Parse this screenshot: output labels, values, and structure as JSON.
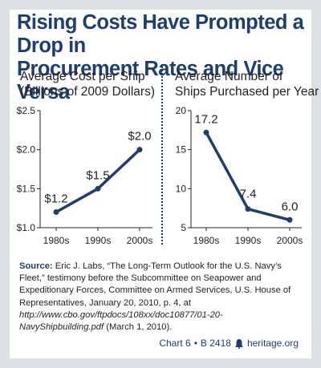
{
  "title": {
    "line1": "Rising Costs Have Prompted a Drop in",
    "line2": "Procurement Rates and Vice Versa"
  },
  "chart_data": [
    {
      "type": "line",
      "title_line1": "Average Cost per Ship",
      "title_line2": "(Billions of 2009 Dollars)",
      "categories": [
        "1980s",
        "1990s",
        "2000s"
      ],
      "values": [
        1.2,
        1.5,
        2.0
      ],
      "data_labels": [
        "$1.2",
        "$1.5",
        "$2.0"
      ],
      "yticks": [
        1.0,
        1.5,
        2.0,
        2.5
      ],
      "ytick_labels": [
        "$1.0",
        "$1.5",
        "$2.0",
        "$2.5"
      ],
      "ylim": [
        1.0,
        2.5
      ],
      "color": "#1c3f73",
      "grid": false
    },
    {
      "type": "line",
      "title_line1": "Average Number of",
      "title_line2": "Ships Purchased per Year",
      "categories": [
        "1980s",
        "1990s",
        "2000s"
      ],
      "values": [
        17.2,
        7.4,
        6.0
      ],
      "data_labels": [
        "17.2",
        "7.4",
        "6.0"
      ],
      "yticks": [
        5,
        10,
        15,
        20
      ],
      "ytick_labels": [
        "5",
        "10",
        "15",
        "20"
      ],
      "ylim": [
        5,
        20
      ],
      "color": "#1c3f73",
      "grid": false
    }
  ],
  "source": {
    "label": "Source:",
    "text1": " Eric J. Labs, “The Long-Term Outlook for the U.S. Navy’s Fleet,” testimony before the Subcommittee on Seapower and Expeditionary Forces, Committee on Armed Services, U.S. House of Representatives, January 20, 2010, p. 4, at ",
    "url": "http://www.cbo.gov/ftpdocs/108xx/doc10877/01-20-NavyShipbuilding.pdf",
    "text2": " (March 1, 2010)."
  },
  "footer": {
    "chart_id": "Chart 6",
    "separator": "•",
    "report": "B 2418",
    "site": "heritage.org"
  }
}
